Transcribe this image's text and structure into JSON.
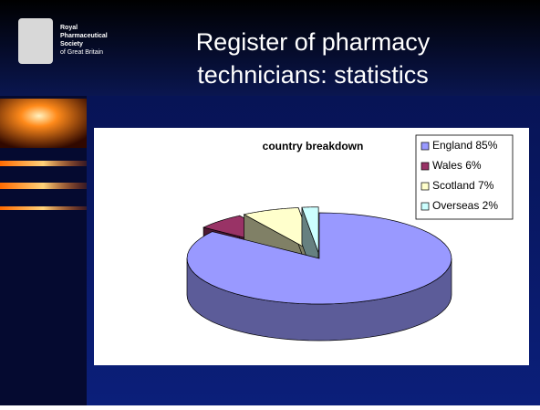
{
  "slide": {
    "logo_lines": [
      "Royal",
      "Pharmaceutical",
      "Society",
      "of Great Britain"
    ],
    "title_lines": [
      "Register of pharmacy",
      "technicians: statistics"
    ]
  },
  "chart_data": {
    "type": "pie",
    "title": "country breakdown",
    "categories": [
      "England 85%",
      "Wales 6%",
      "Scotland 7%",
      "Overseas 2%"
    ],
    "values": [
      85,
      6,
      7,
      2
    ],
    "colors": [
      "#9999ff",
      "#993366",
      "#ffffcc",
      "#ccffff"
    ],
    "legend": "right"
  }
}
